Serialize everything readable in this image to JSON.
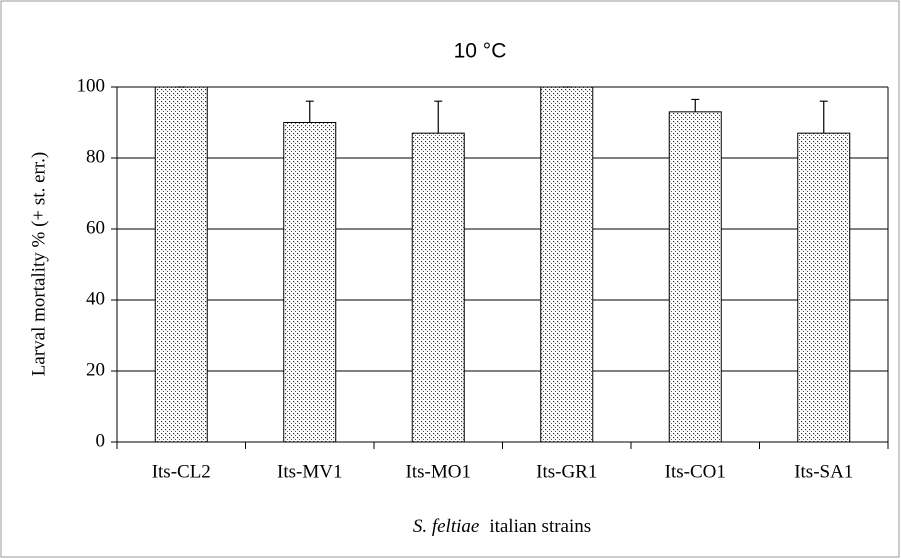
{
  "chart_data": {
    "type": "bar",
    "title": "10 °C",
    "ylabel": "Larval mortality % (+ st. err.)",
    "xlabel": [
      "S. feltiae",
      "italian strains"
    ],
    "categories": [
      "Its-CL2",
      "Its-MV1",
      "Its-MO1",
      "Its-GR1",
      "Its-CO1",
      "Its-SA1"
    ],
    "values": [
      100,
      90,
      87,
      100,
      93,
      87
    ],
    "errors": [
      0,
      6,
      9,
      0,
      3.5,
      9
    ],
    "color": "#ffffff",
    "ylim": [
      0,
      100
    ],
    "yticks": [
      0,
      20,
      40,
      60,
      80,
      100
    ],
    "grid": true
  }
}
